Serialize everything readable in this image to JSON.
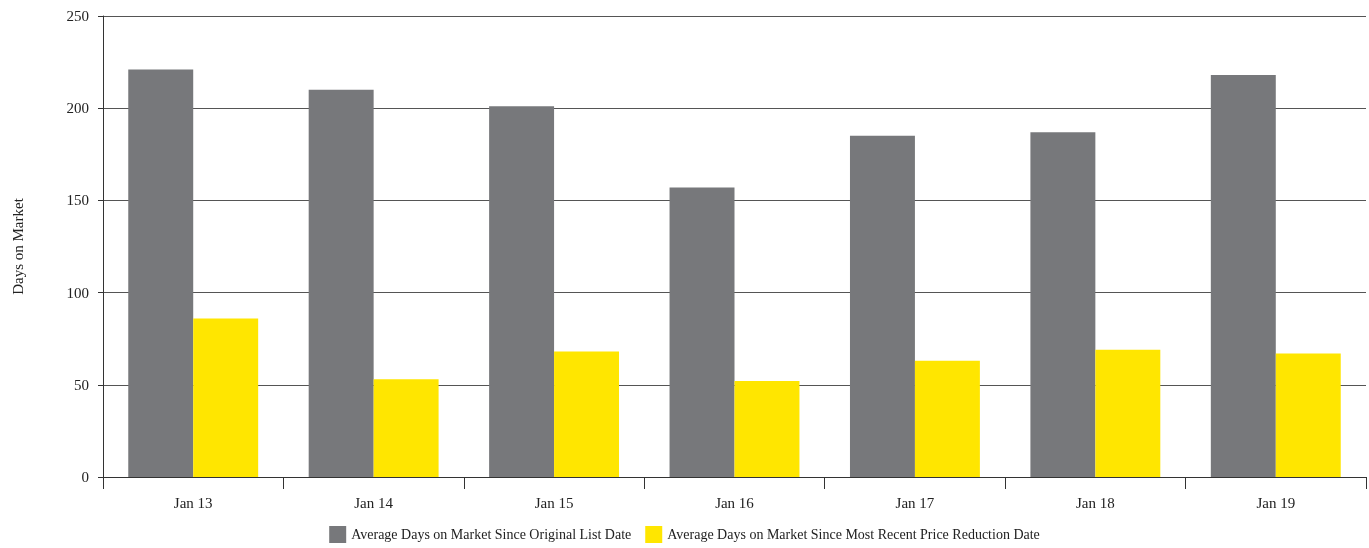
{
  "chart_data": {
    "type": "bar",
    "ylabel": "Days on Market",
    "categories": [
      "Jan 13",
      "Jan 14",
      "Jan 15",
      "Jan 16",
      "Jan 17",
      "Jan 18",
      "Jan 19"
    ],
    "series": [
      {
        "name": "Average Days on Market Since Original List Date",
        "color": "#77787b",
        "values": [
          221,
          210,
          201,
          157,
          185,
          187,
          218
        ]
      },
      {
        "name": "Average Days on Market Since Most Recent Price Reduction Date",
        "color": "#ffe600",
        "values": [
          86,
          53,
          68,
          52,
          63,
          69,
          67
        ]
      }
    ],
    "ylim": [
      0,
      250
    ],
    "yticks": [
      0,
      50,
      100,
      150,
      200,
      250
    ],
    "grid": "y",
    "legend": "bottom"
  }
}
